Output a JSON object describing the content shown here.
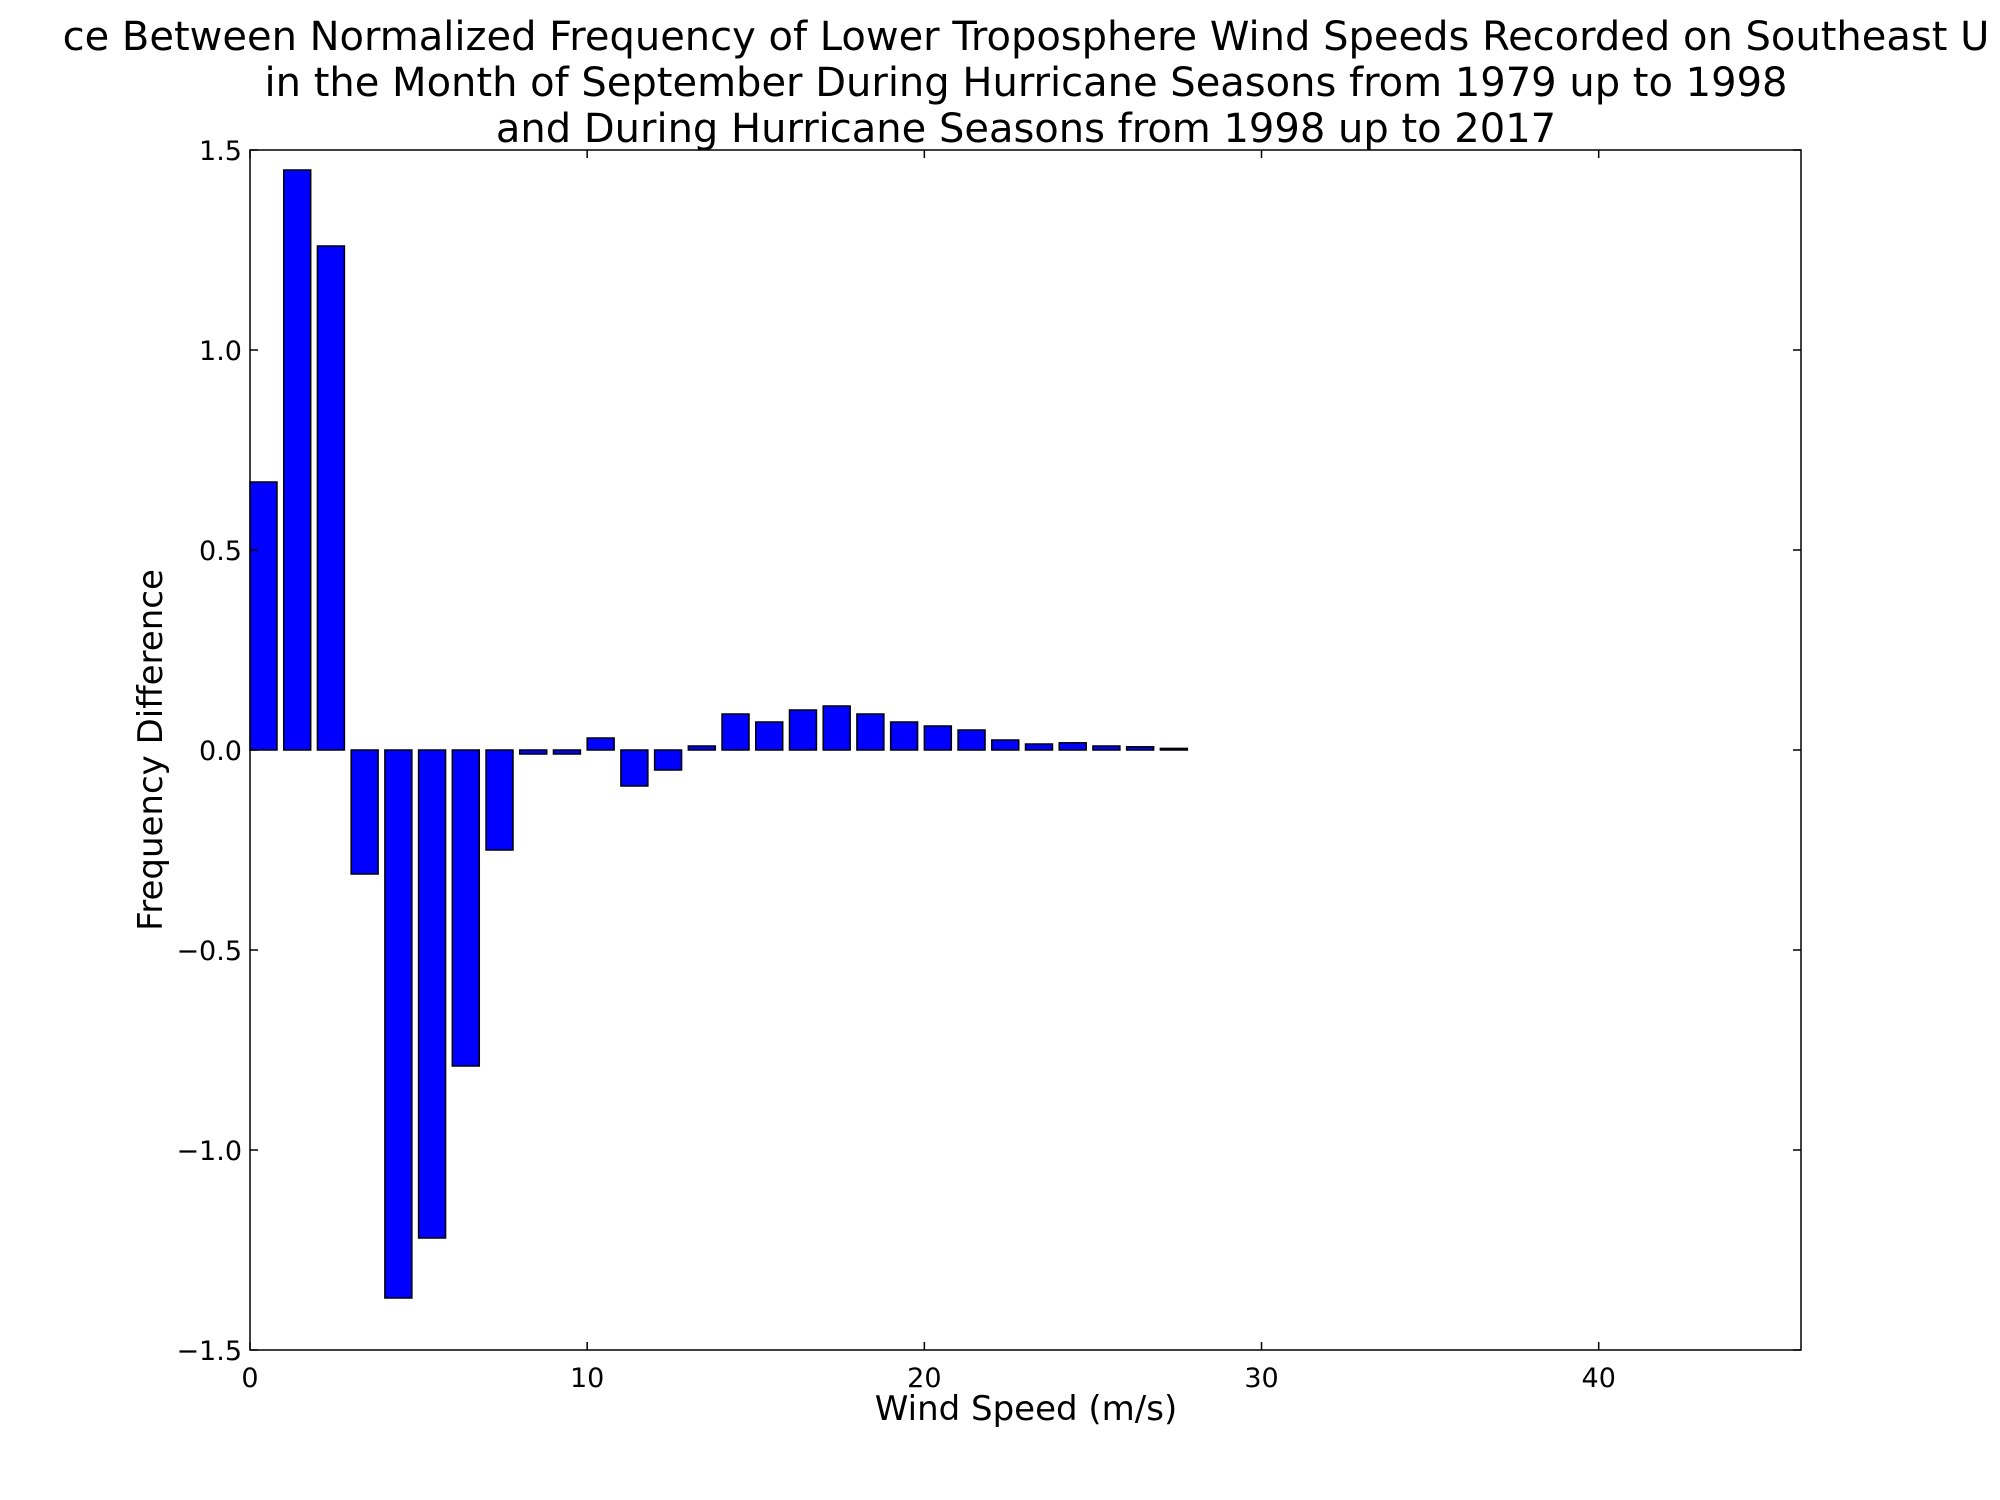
{
  "chart_data": {
    "type": "bar",
    "title_lines": [
      "ce Between Normalized Frequency of Lower Troposphere Wind Speeds Recorded on Southeast U",
      "in the Month of September During Hurricane Seasons from 1979 up to 1998",
      "and During Hurricane Seasons from 1998 up to 2017"
    ],
    "xlabel": "Wind Speed (m/s)",
    "ylabel": "Frequency Difference",
    "xlim": [
      0,
      46
    ],
    "ylim": [
      -1.5,
      1.5
    ],
    "xticks": [
      0,
      10,
      20,
      30,
      40
    ],
    "xtick_labels": [
      "0",
      "10",
      "20",
      "30",
      "40"
    ],
    "yticks": [
      1.5,
      1.0,
      0.5,
      0.0,
      -0.5,
      -1.0,
      -1.5
    ],
    "ytick_labels": [
      "1.5",
      "1.0",
      "0.5",
      "0.0",
      "−0.5",
      "−1.0",
      "−1.5"
    ],
    "bar_color": "#0000ff",
    "edge_color": "#000000",
    "bar_width": 0.8,
    "grid": false,
    "x": [
      0,
      1,
      2,
      3,
      4,
      5,
      6,
      7,
      8,
      9,
      10,
      11,
      12,
      13,
      14,
      15,
      16,
      17,
      18,
      19,
      20,
      21,
      22,
      23,
      24,
      25,
      26,
      27,
      28,
      29,
      30,
      31,
      32,
      33,
      34,
      35,
      36,
      37,
      38,
      39,
      40,
      41,
      42,
      43,
      44
    ],
    "values": [
      0.67,
      1.45,
      1.26,
      -0.31,
      -1.37,
      -1.22,
      -0.79,
      -0.25,
      -0.01,
      -0.01,
      0.03,
      -0.09,
      -0.05,
      0.01,
      0.09,
      0.07,
      0.1,
      0.11,
      0.09,
      0.07,
      0.06,
      0.05,
      0.025,
      0.015,
      0.018,
      0.01,
      0.008,
      0.004,
      0.0,
      0.0,
      0.0,
      0.0,
      0.0,
      0.0,
      0.0,
      0.0,
      0.0,
      0.0,
      0.0,
      0.0,
      0.0,
      0.0,
      0.0,
      0.0,
      0.0
    ]
  }
}
